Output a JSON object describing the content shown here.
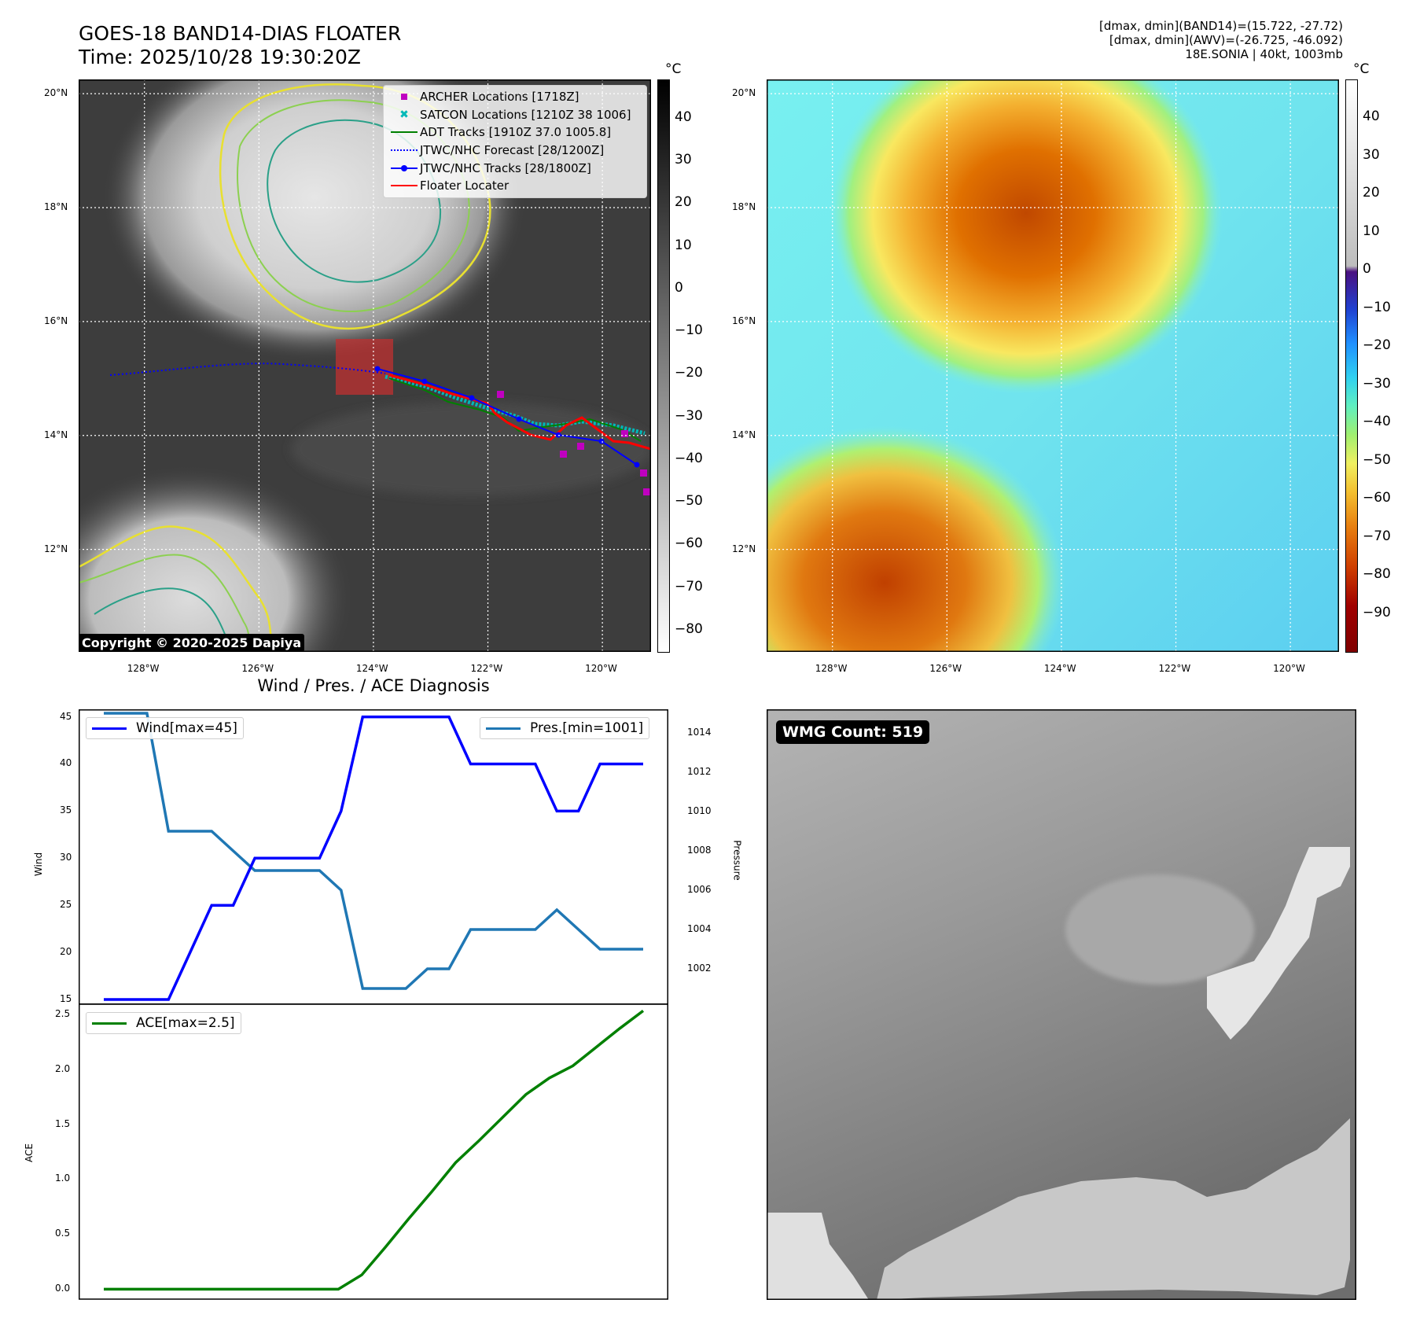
{
  "header": {
    "title_line1": "GOES-18 BAND14-DIAS FLOATER",
    "title_line2": "Time: 2025/10/28 19:30:20Z",
    "info_line1": "[dmax, dmin](BAND14)=(15.722, -27.72)",
    "info_line2": "[dmax, dmin](AWV)=(-26.725, -46.092)",
    "info_line3": "18E.SONIA | 40kt, 1003mb"
  },
  "map_axes": {
    "lat_ticks": [
      "20°N",
      "18°N",
      "16°N",
      "14°N",
      "12°N"
    ],
    "lat_values": [
      20,
      18,
      16,
      14,
      12
    ],
    "lon_ticks": [
      "128°W",
      "126°W",
      "124°W",
      "122°W",
      "120°W"
    ],
    "lon_values": [
      -128,
      -126,
      -124,
      -122,
      -120
    ],
    "lon_range": [
      -129.15,
      -119.15
    ],
    "lat_range": [
      10.2,
      20.25
    ]
  },
  "ir_panel": {
    "colorbar_unit": "°C",
    "colorbar_ticks": [
      "40",
      "30",
      "20",
      "10",
      "0",
      "−10",
      "−20",
      "−30",
      "−40",
      "−50",
      "−60",
      "−70",
      "−80"
    ],
    "colorbar_values": [
      40,
      30,
      20,
      10,
      0,
      -10,
      -20,
      -30,
      -40,
      -50,
      -60,
      -70,
      -80
    ],
    "colorbar_range": [
      -85,
      49
    ],
    "copyright": "Copyright © 2020-2025 Dapiya",
    "legend": [
      {
        "label": "ARCHER Locations [1718Z]",
        "symbol": "square",
        "color": "#c000c0"
      },
      {
        "label": "SATCON Locations [1210Z 38 1006]",
        "symbol": "x",
        "color": "#00b8b8"
      },
      {
        "label": "ADT Tracks [1910Z 37.0 1005.8]",
        "symbol": "line",
        "color": "#008000"
      },
      {
        "label": "JTWC/NHC Forecast [28/1200Z]",
        "symbol": "dotted",
        "color": "#0000ff"
      },
      {
        "label": "JTWC/NHC Tracks [28/1800Z]",
        "symbol": "line-dot",
        "color": "#0000ff"
      },
      {
        "label": "Floater Locater",
        "symbol": "line",
        "color": "#ff0000"
      }
    ]
  },
  "bd_panel": {
    "colorbar_unit": "°C",
    "colorbar_ticks": [
      "40",
      "30",
      "20",
      "10",
      "0",
      "−10",
      "−20",
      "−30",
      "−40",
      "−50",
      "−60",
      "−70",
      "−80",
      "−90"
    ],
    "colorbar_values": [
      40,
      30,
      20,
      10,
      0,
      -10,
      -20,
      -30,
      -40,
      -50,
      -60,
      -70,
      -80,
      -90
    ],
    "colorbar_range": [
      -100,
      50
    ]
  },
  "chart_data": [
    {
      "type": "line",
      "title": "Wind / Pres. / ACE Diagnosis",
      "ylabel": "Wind",
      "y2label": "Pressure",
      "ylim": [
        14.5,
        45.8
      ],
      "y2lim": [
        1000.2,
        1015.2
      ],
      "yticks": [
        15,
        20,
        25,
        30,
        35,
        40,
        45
      ],
      "y2ticks": [
        1002,
        1004,
        1006,
        1008,
        1010,
        1012,
        1014
      ],
      "series": [
        {
          "name": "Wind[max=45]",
          "color": "#0000ff",
          "axis": "left",
          "values": [
            15,
            15,
            15,
            15,
            20,
            25,
            25,
            30,
            30,
            30,
            30,
            35,
            45,
            45,
            45,
            45,
            45,
            40,
            40,
            40,
            40,
            35,
            35,
            40,
            40,
            40
          ]
        },
        {
          "name": "Pres.[min=1001]",
          "color": "#1f77b4",
          "axis": "right",
          "values": [
            1015,
            1015,
            1015,
            1009,
            1009,
            1009,
            1008,
            1007,
            1007,
            1007,
            1007,
            1006,
            1001,
            1001,
            1001,
            1002,
            1002,
            1004,
            1004,
            1004,
            1004,
            1005,
            1004,
            1003,
            1003,
            1003
          ]
        }
      ]
    },
    {
      "type": "line",
      "ylabel": "ACE",
      "ylim": [
        -0.09,
        2.59
      ],
      "yticks": [
        "0.0",
        "0.5",
        "1.0",
        "1.5",
        "2.0",
        "2.5"
      ],
      "ytick_values": [
        0,
        0.5,
        1.0,
        1.5,
        2.0,
        2.5
      ],
      "series": [
        {
          "name": "ACE[max=2.5]",
          "color": "#008000",
          "values": [
            0,
            0,
            0,
            0,
            0,
            0,
            0,
            0,
            0,
            0,
            0,
            0.13,
            0.38,
            0.64,
            0.89,
            1.15,
            1.35,
            1.56,
            1.77,
            1.92,
            2.03,
            2.2,
            2.37,
            2.53
          ]
        }
      ]
    }
  ],
  "wmg_panel": {
    "label": "WMG Count: 519"
  }
}
